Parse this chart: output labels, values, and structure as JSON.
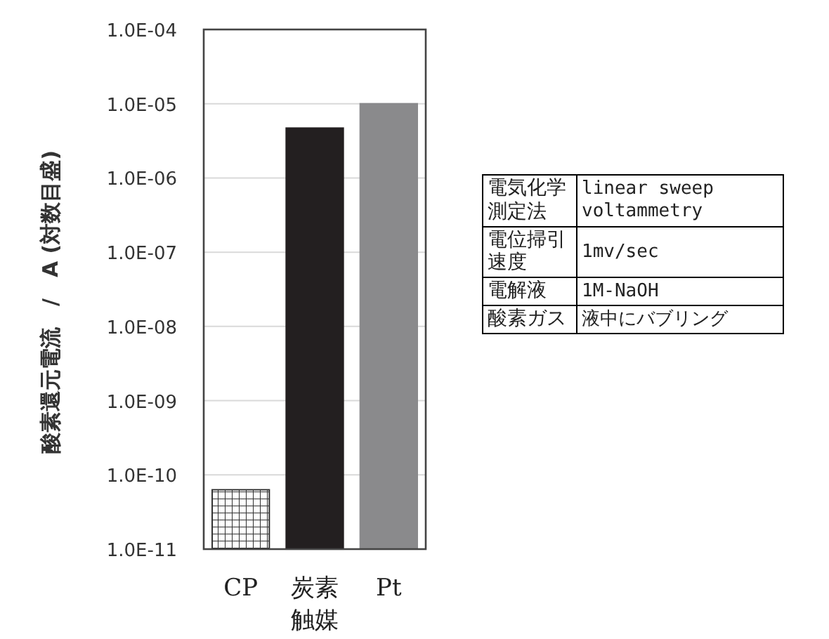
{
  "chart_data": [
    {
      "type": "bar",
      "ylabel": "酸素還元電流　/　A (対数目盛)",
      "categories": [
        "CP",
        "炭素触媒",
        "Pt"
      ],
      "values": [
        6.3e-11,
        4.7e-06,
        1e-05
      ],
      "colors": [
        "#333333",
        "#231f20",
        "#8a8a8c"
      ],
      "log": "y",
      "ylim": [
        1e-11,
        0.0001
      ],
      "yticks": [
        {
          "value": 1e-11,
          "label": "1.0E-11"
        },
        {
          "value": 1e-10,
          "label": "1.0E-10"
        },
        {
          "value": 1e-09,
          "label": "1.0E-09"
        },
        {
          "value": 1e-08,
          "label": "1.0E-08"
        },
        {
          "value": 1e-07,
          "label": "1.0E-07"
        },
        {
          "value": 1e-06,
          "label": "1.0E-06"
        },
        {
          "value": 1e-05,
          "label": "1.0E-05"
        },
        {
          "value": 0.0001,
          "label": "1.0E-04"
        }
      ],
      "grid": "y"
    },
    {
      "type": "other",
      "annotations": [
        "電気化学測定法",
        "linear sweep voltammetry",
        "電位掃引速度",
        "1mv/sec",
        "電解液",
        "1M-NaOH",
        "酸素ガス",
        "液中にバブリング"
      ]
    }
  ]
}
